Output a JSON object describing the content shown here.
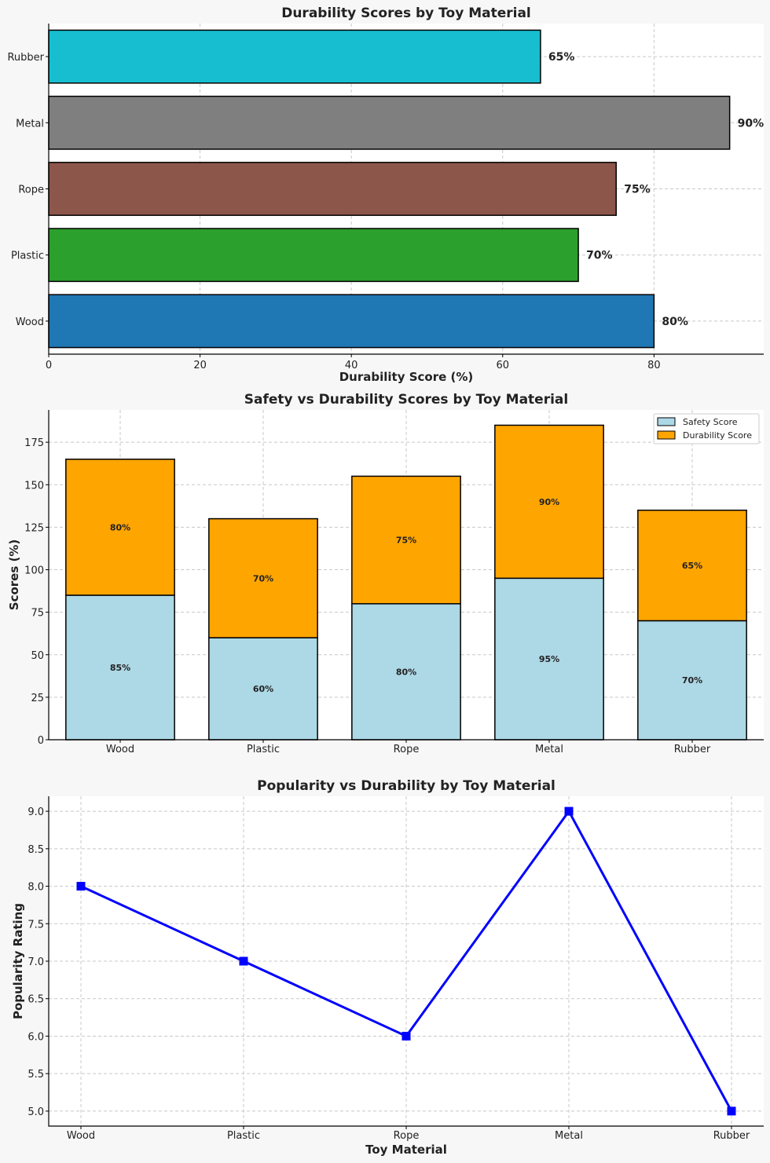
{
  "chart_data": [
    {
      "type": "bar",
      "orientation": "horizontal",
      "title": "Durability Scores by Toy Material",
      "xlabel": "Durability Score (%)",
      "ylabel": "",
      "categories": [
        "Wood",
        "Plastic",
        "Rope",
        "Metal",
        "Rubber"
      ],
      "values": [
        80,
        70,
        75,
        90,
        65
      ],
      "value_labels": [
        "80%",
        "70%",
        "75%",
        "90%",
        "65%"
      ],
      "colors": [
        "#1f77b4",
        "#2ca02c",
        "#8c564b",
        "#7f7f7f",
        "#17becf"
      ],
      "xlim": [
        0,
        94.5
      ],
      "xticks": [
        0,
        20,
        40,
        60,
        80
      ],
      "grid": true
    },
    {
      "type": "bar",
      "stacked": true,
      "title": "Safety vs Durability Scores by Toy Material",
      "xlabel": "",
      "ylabel": "Scores (%)",
      "categories": [
        "Wood",
        "Plastic",
        "Rope",
        "Metal",
        "Rubber"
      ],
      "series": [
        {
          "name": "Safety Score",
          "color": "#add8e6",
          "values": [
            85,
            60,
            80,
            95,
            70
          ],
          "labels": [
            "85%",
            "60%",
            "80%",
            "95%",
            "70%"
          ]
        },
        {
          "name": "Durability Score",
          "color": "#ffa500",
          "values": [
            80,
            70,
            75,
            90,
            65
          ],
          "labels": [
            "80%",
            "70%",
            "75%",
            "90%",
            "65%"
          ]
        }
      ],
      "ylim": [
        0,
        194
      ],
      "yticks": [
        0,
        25,
        50,
        75,
        100,
        125,
        150,
        175
      ],
      "legend": "top-right",
      "grid": true
    },
    {
      "type": "line",
      "title": "Popularity vs Durability by Toy Material",
      "xlabel": "Toy Material",
      "ylabel": "Popularity Rating",
      "categories": [
        "Wood",
        "Plastic",
        "Rope",
        "Metal",
        "Rubber"
      ],
      "values": [
        8,
        7,
        6,
        9,
        5
      ],
      "color": "#0000ff",
      "marker": "square",
      "ylim": [
        4.8,
        9.2
      ],
      "yticks": [
        "5.0",
        "5.5",
        "6.0",
        "6.5",
        "7.0",
        "7.5",
        "8.0",
        "8.5",
        "9.0"
      ],
      "grid": true
    }
  ]
}
